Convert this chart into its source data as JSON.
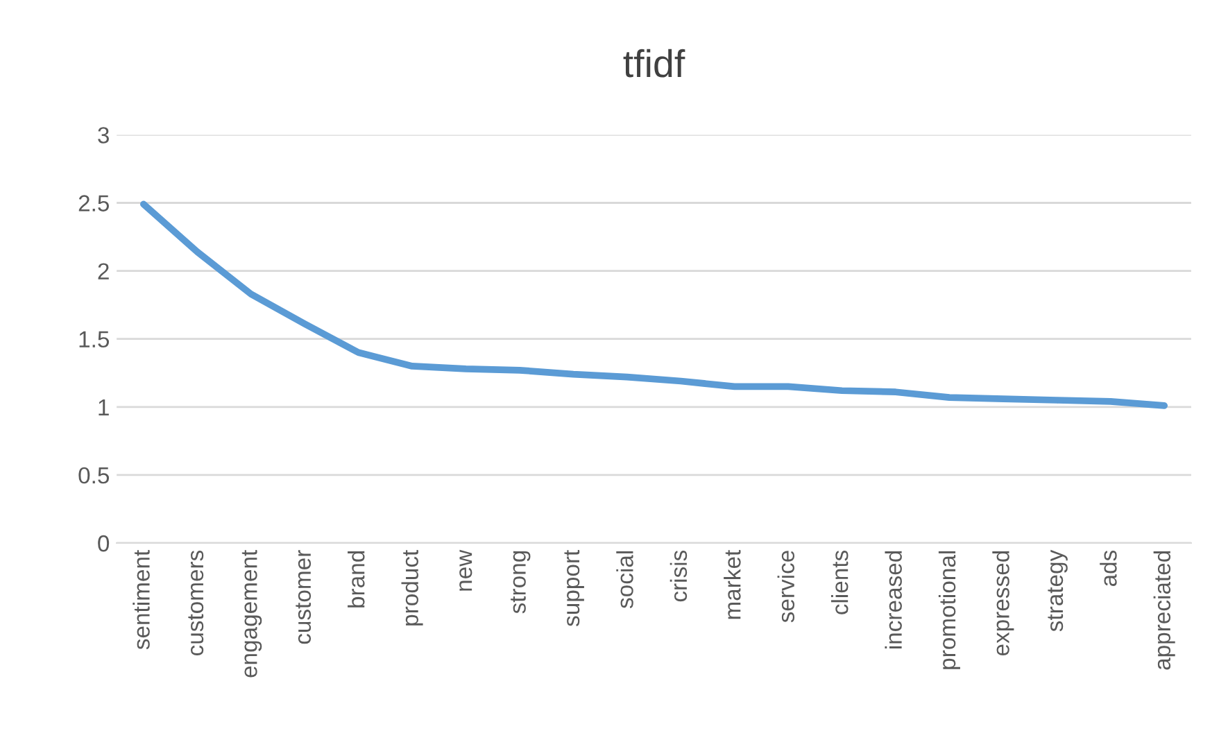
{
  "chart_data": {
    "type": "line",
    "title": "tfidf",
    "categories": [
      "sentiment",
      "customers",
      "engagement",
      "customer",
      "brand",
      "product",
      "new",
      "strong",
      "support",
      "social",
      "crisis",
      "market",
      "service",
      "clients",
      "increased",
      "promotional",
      "expressed",
      "strategy",
      "ads",
      "appreciated"
    ],
    "series": [
      {
        "color": "#5b9bd5",
        "values": [
          2.49,
          2.14,
          1.83,
          1.61,
          1.4,
          1.3,
          1.28,
          1.27,
          1.24,
          1.22,
          1.19,
          1.15,
          1.15,
          1.12,
          1.11,
          1.07,
          1.06,
          1.05,
          1.04,
          1.01
        ]
      }
    ],
    "ylim": [
      0,
      3
    ],
    "yticks": [
      0,
      0.5,
      1,
      1.5,
      2,
      2.5,
      3
    ],
    "grid": "y",
    "legend": false
  }
}
